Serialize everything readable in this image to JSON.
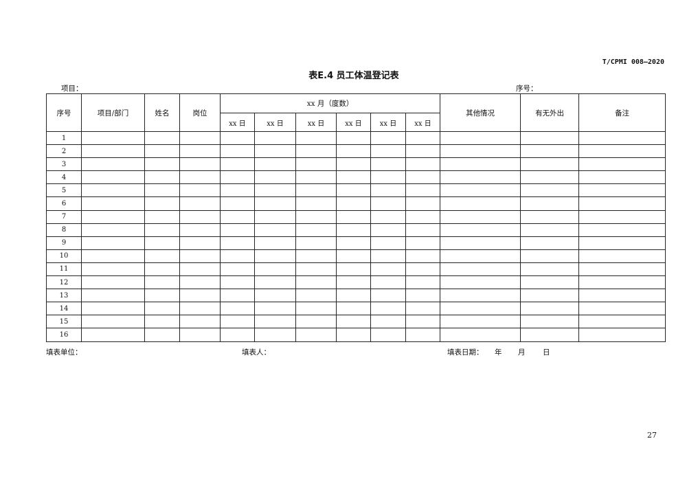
{
  "header": {
    "standard_code": "T/CPMI 008—2020",
    "title": "表E.4 员工体温登记表",
    "project_label": "项目：",
    "serial_label": "序号："
  },
  "table": {
    "columns": {
      "no": "序号",
      "project_dept": "项目/部门",
      "name": "姓名",
      "position": "岗位",
      "month": "xx 月（度数）",
      "day": "xx 日",
      "other": "其他情况",
      "outing": "有无外出",
      "remarks": "备注"
    },
    "row_numbers": [
      "1",
      "2",
      "3",
      "4",
      "5",
      "6",
      "7",
      "8",
      "9",
      "10",
      "11",
      "12",
      "13",
      "14",
      "15",
      "16"
    ]
  },
  "footer": {
    "unit_label": "填表单位：",
    "filler_label": "填表人：",
    "date_label": "填表日期：",
    "year": "年",
    "month": "月",
    "day": "日"
  },
  "page_number": "27"
}
